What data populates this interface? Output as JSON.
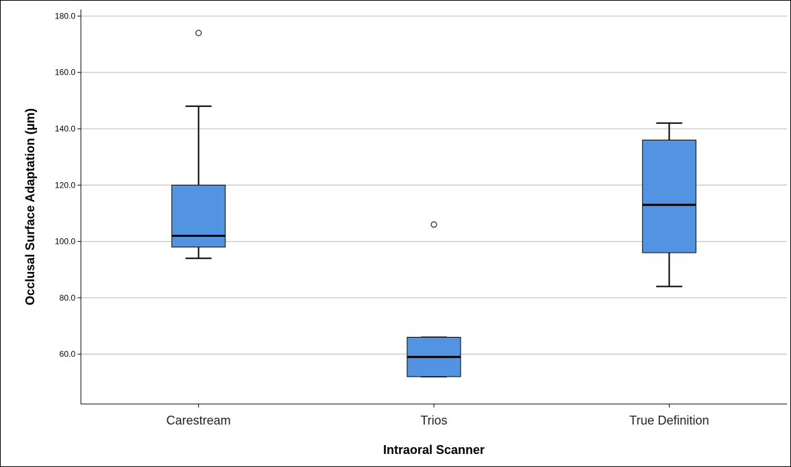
{
  "chart_data": {
    "type": "box",
    "title": "",
    "xlabel": "Intraoral Scanner",
    "ylabel": "Occlusal Surface Adaptation (µm)",
    "ylim": [
      42.3,
      182.3
    ],
    "yticks": [
      60,
      80,
      100,
      120,
      140,
      160,
      180
    ],
    "ytick_labels": [
      "60.0",
      "80.0",
      "100.0",
      "120.0",
      "140.0",
      "160.0",
      "180.0"
    ],
    "grid": true,
    "box_color": "#5294e2",
    "categories": [
      "Carestream",
      "Trios",
      "True Definition"
    ],
    "boxes": [
      {
        "name": "Carestream",
        "whisker_low": 94,
        "q1": 98,
        "median": 102,
        "q3": 120,
        "whisker_high": 148,
        "outliers": [
          174
        ]
      },
      {
        "name": "Trios",
        "whisker_low": 52,
        "q1": 52,
        "median": 59,
        "q3": 66,
        "whisker_high": 66,
        "outliers": [
          106
        ]
      },
      {
        "name": "True Definition",
        "whisker_low": 84,
        "q1": 96,
        "median": 113,
        "q3": 136,
        "whisker_high": 142,
        "outliers": []
      }
    ]
  }
}
